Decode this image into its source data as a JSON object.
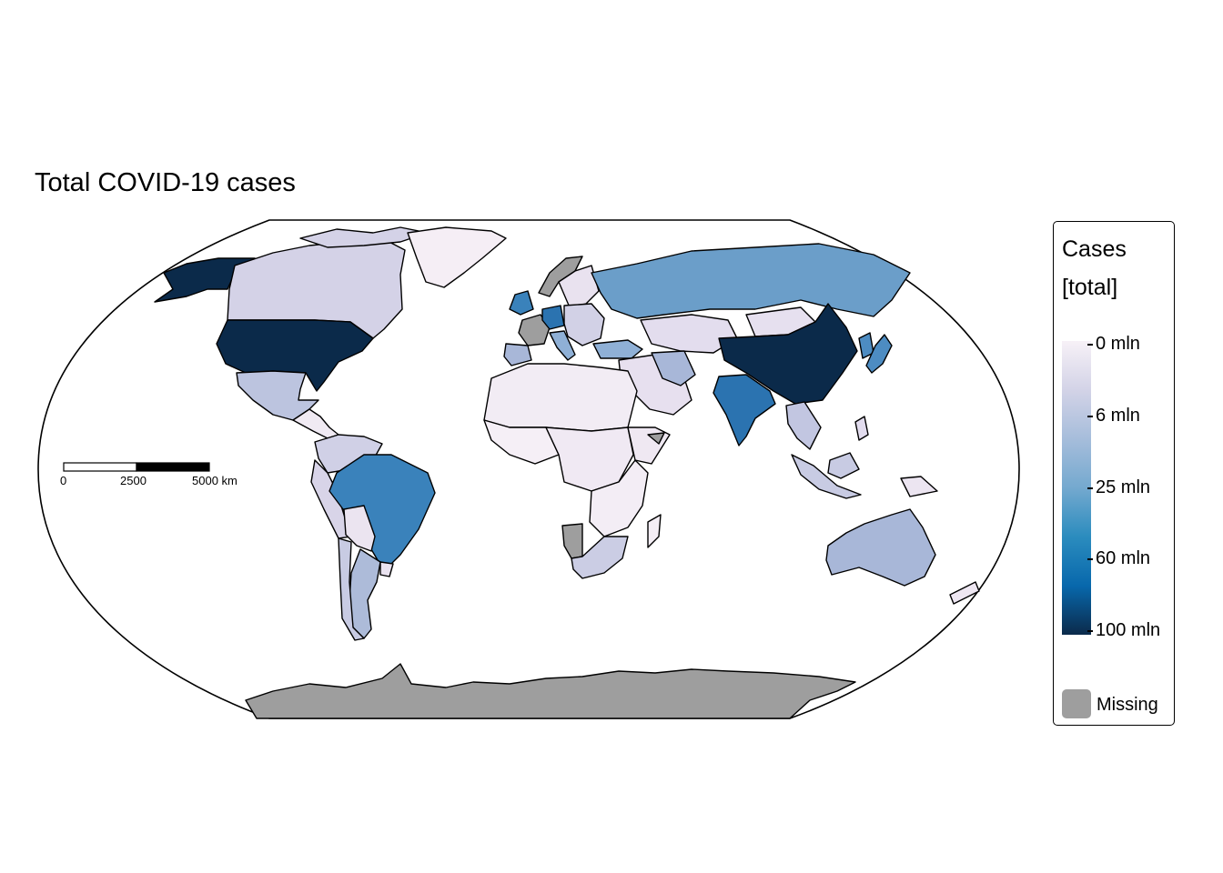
{
  "map": {
    "title": "Total COVID-19 cases",
    "projection": "Robinson-like world, Antarctica shown",
    "missing_color": "#9e9e9e",
    "regions": [
      {
        "name": "United States",
        "level": "~100 mln",
        "color": "#0b2a4a"
      },
      {
        "name": "Alaska (US)",
        "level": "~100 mln",
        "color": "#0b2a4a"
      },
      {
        "name": "China",
        "level": "~100 mln",
        "color": "#0b2a4a"
      },
      {
        "name": "India",
        "level": "~45 mln",
        "color": "#2b73b0"
      },
      {
        "name": "Brazil",
        "level": "~35 mln",
        "color": "#3a82bb"
      },
      {
        "name": "Russia",
        "level": "~22 mln",
        "color": "#6b9ec9"
      },
      {
        "name": "Japan",
        "level": "~30 mln",
        "color": "#4d8cc2"
      },
      {
        "name": "Canada",
        "level": "~4 mln",
        "color": "#d4d2e7"
      },
      {
        "name": "Australia",
        "level": "~11 mln",
        "color": "#a8b7d8"
      },
      {
        "name": "Argentina",
        "level": "~10 mln",
        "color": "#adbbd9"
      },
      {
        "name": "Mexico",
        "level": "~7 mln",
        "color": "#bcc4df"
      },
      {
        "name": "Greenland",
        "level": "~0 mln",
        "color": "#f5eef5"
      },
      {
        "name": "France",
        "level": "missing",
        "color": "#9e9e9e"
      },
      {
        "name": "Namibia",
        "level": "missing",
        "color": "#9e9e9e"
      },
      {
        "name": "Norway",
        "level": "missing",
        "color": "#9e9e9e"
      },
      {
        "name": "Somaliland",
        "level": "missing",
        "color": "#9e9e9e"
      },
      {
        "name": "Antarctica",
        "level": "missing",
        "color": "#9e9e9e"
      }
    ]
  },
  "legend": {
    "title_line1": "Cases",
    "title_line2": "[total]",
    "labels": [
      "0 mln",
      "6 mln",
      "25 mln",
      "60 mln",
      "100 mln"
    ],
    "label_values_mln": [
      0,
      6,
      25,
      60,
      100
    ],
    "gradient_colors": [
      "#f7f1f7",
      "#d3d3e7",
      "#a6bddb",
      "#74a9cf",
      "#2b8cbe",
      "#0868ac",
      "#0b2a4a"
    ],
    "missing_label": "Missing"
  },
  "scalebar": {
    "labels": [
      "0",
      "2500",
      "5000 km"
    ],
    "values_km": [
      0,
      2500,
      5000
    ]
  }
}
